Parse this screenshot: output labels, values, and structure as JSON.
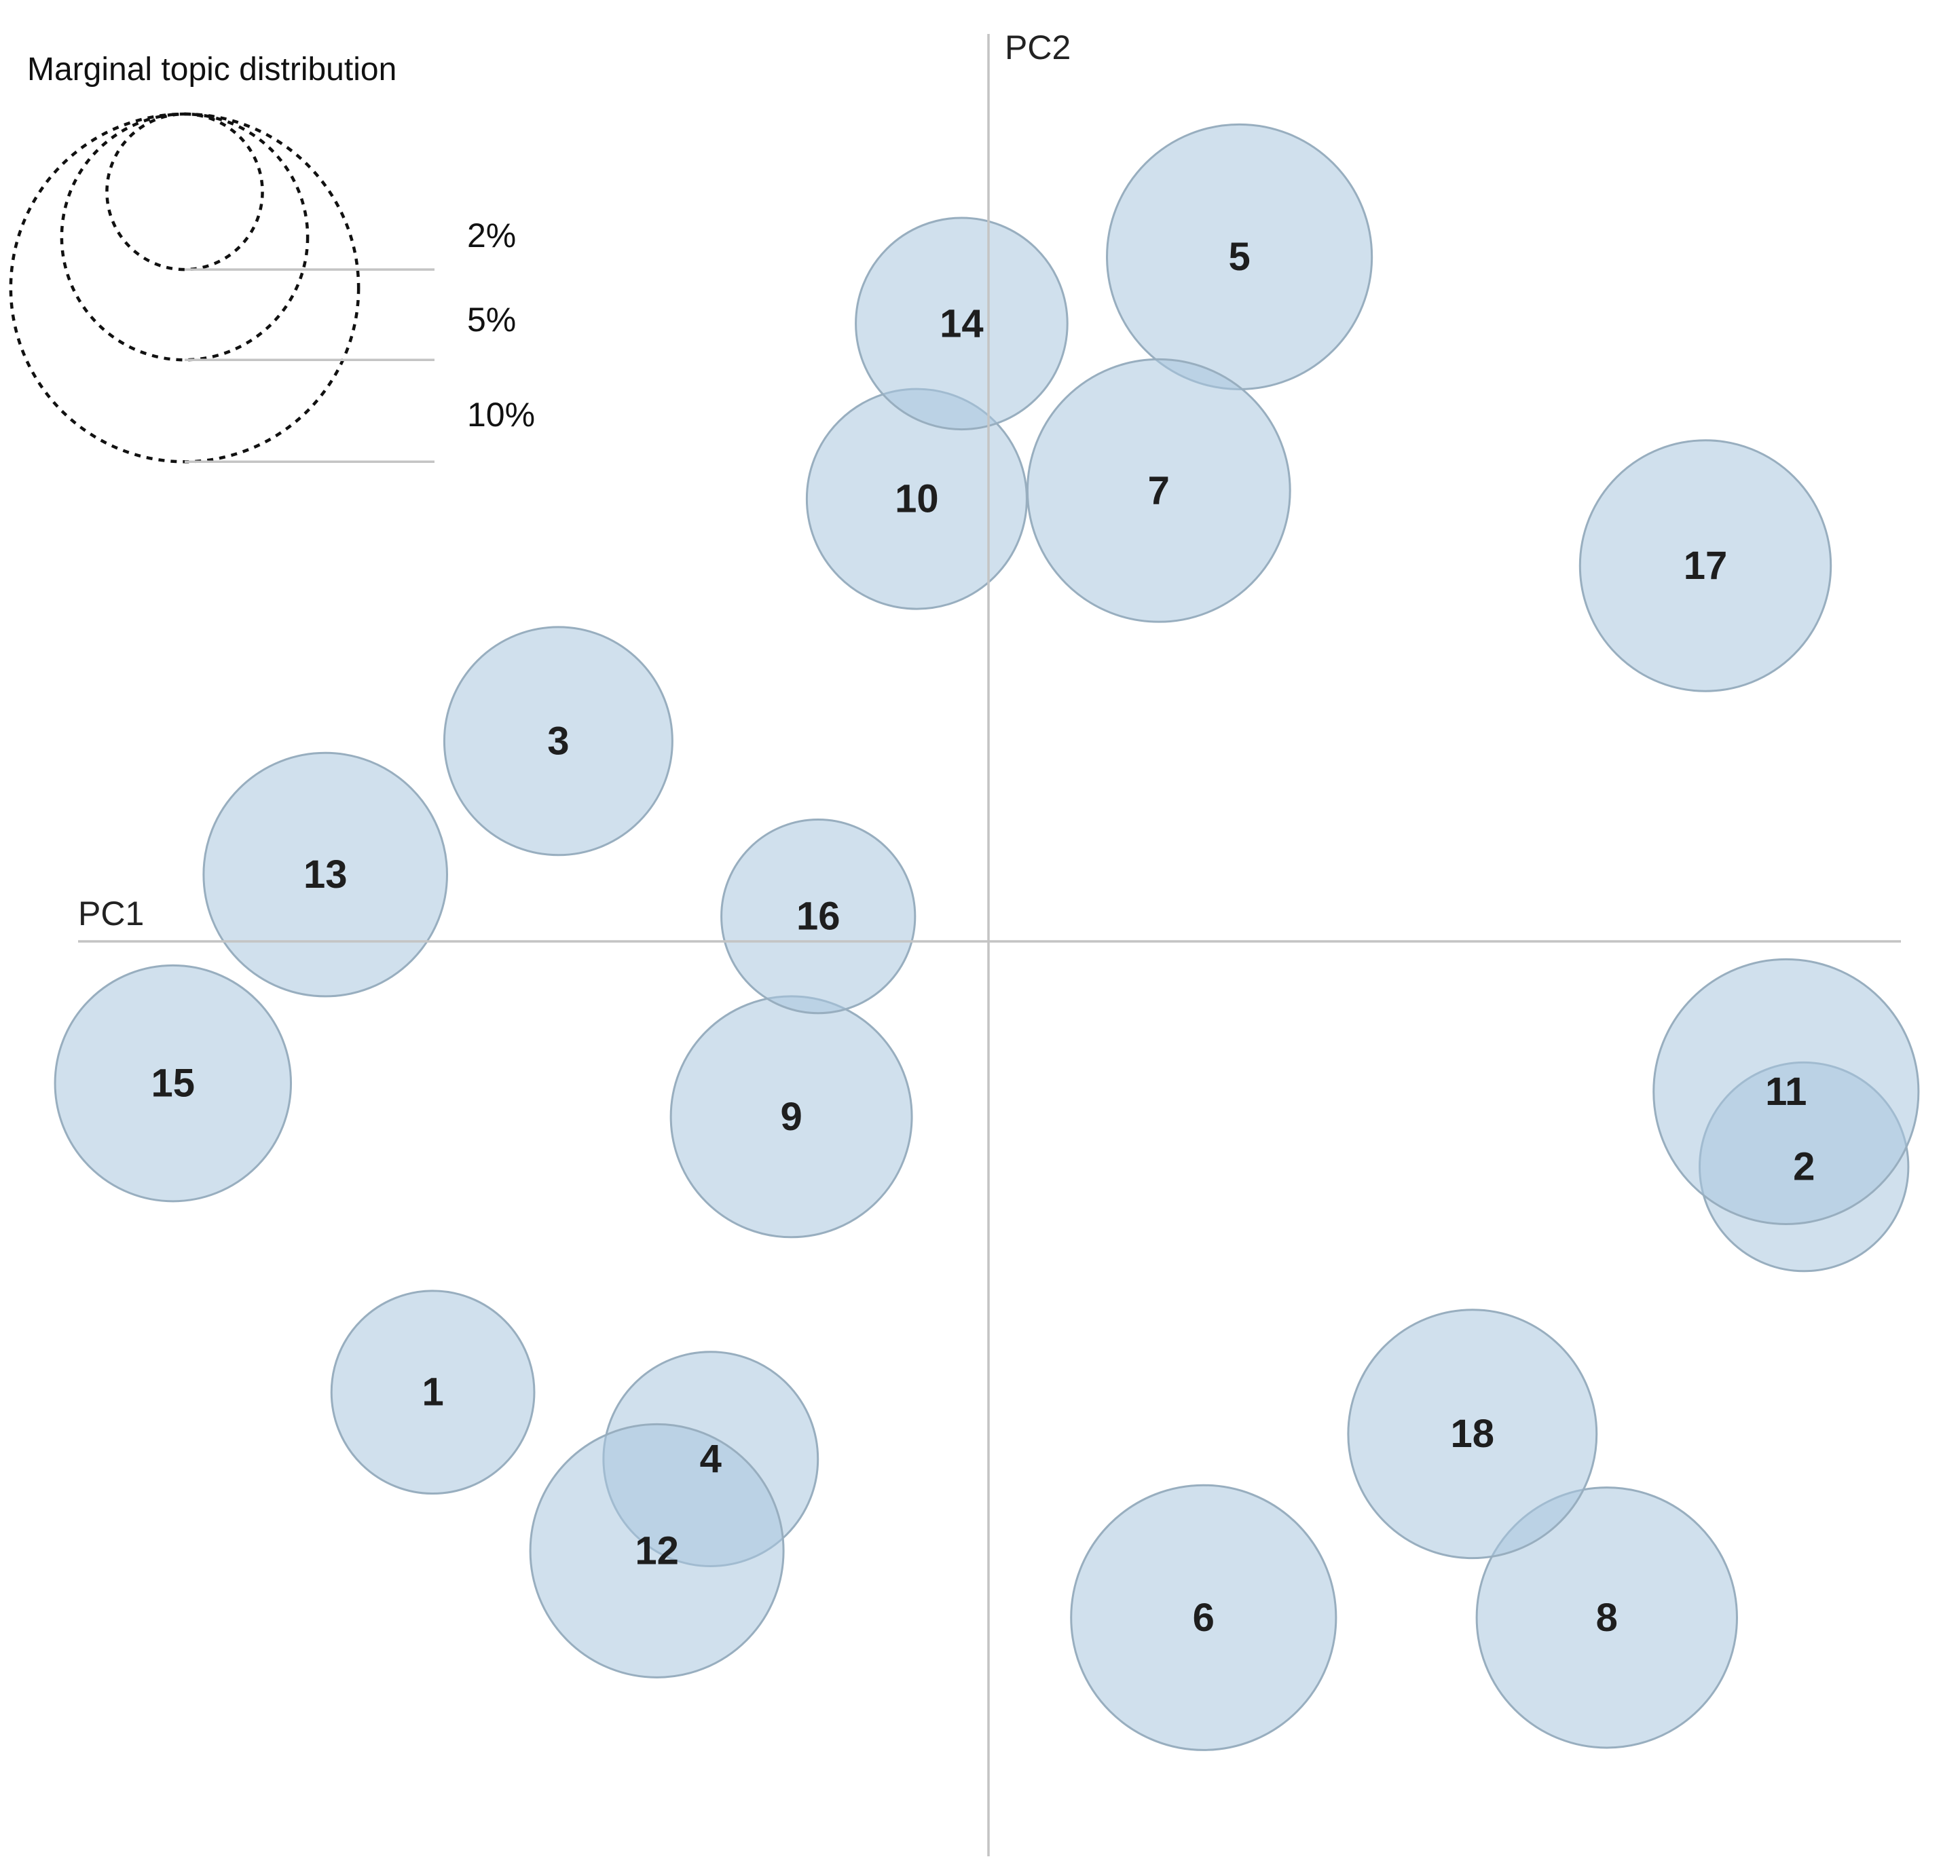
{
  "chart_data": {
    "type": "scatter",
    "title": "",
    "xlabel": "PC1",
    "ylabel": "PC2",
    "xlim": [
      -1.0,
      1.0
    ],
    "ylim": [
      -1.0,
      1.0
    ],
    "grid": false,
    "size_legend": {
      "title": "Marginal topic distribution",
      "placement": "top-left",
      "entries": [
        {
          "label": "2%",
          "percent": 2
        },
        {
          "label": "5%",
          "percent": 5
        },
        {
          "label": "10%",
          "percent": 10
        }
      ]
    },
    "points": [
      {
        "label": "1",
        "x": -0.62,
        "y": -0.54,
        "percent": 3.4
      },
      {
        "label": "2",
        "x": 0.91,
        "y": -0.27,
        "percent": 3.6
      },
      {
        "label": "3",
        "x": -0.48,
        "y": 0.24,
        "percent": 4.3
      },
      {
        "label": "4",
        "x": -0.31,
        "y": -0.62,
        "percent": 3.8
      },
      {
        "label": "5",
        "x": 0.28,
        "y": 0.82,
        "percent": 5.8
      },
      {
        "label": "6",
        "x": 0.24,
        "y": -0.81,
        "percent": 5.8
      },
      {
        "label": "7",
        "x": 0.19,
        "y": 0.54,
        "percent": 5.7
      },
      {
        "label": "8",
        "x": 0.69,
        "y": -0.81,
        "percent": 5.6
      },
      {
        "label": "9",
        "x": -0.22,
        "y": -0.21,
        "percent": 4.8
      },
      {
        "label": "10",
        "x": -0.08,
        "y": 0.53,
        "percent": 4.0
      },
      {
        "label": "11",
        "x": 0.89,
        "y": -0.18,
        "percent": 5.8
      },
      {
        "label": "12",
        "x": -0.37,
        "y": -0.73,
        "percent": 5.3
      },
      {
        "label": "13",
        "x": -0.74,
        "y": 0.08,
        "percent": 4.9
      },
      {
        "label": "14",
        "x": -0.03,
        "y": 0.74,
        "percent": 3.7
      },
      {
        "label": "15",
        "x": -0.91,
        "y": -0.17,
        "percent": 4.6
      },
      {
        "label": "16",
        "x": -0.19,
        "y": 0.03,
        "percent": 3.1
      },
      {
        "label": "17",
        "x": 0.8,
        "y": 0.45,
        "percent": 5.2
      },
      {
        "label": "18",
        "x": 0.54,
        "y": -0.59,
        "percent": 5.1
      }
    ]
  }
}
